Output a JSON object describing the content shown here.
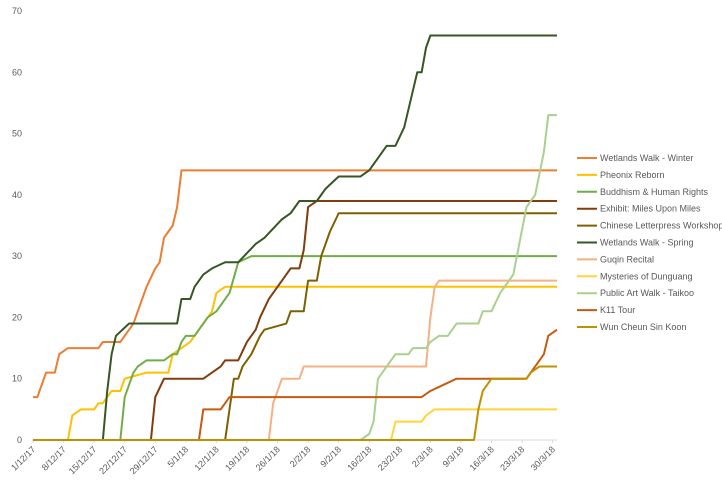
{
  "chart_data": {
    "type": "line",
    "xlim": [
      0,
      120
    ],
    "xticks": [
      {
        "value": 0,
        "label": "1/12/17"
      },
      {
        "value": 7,
        "label": "8/12/17"
      },
      {
        "value": 14,
        "label": "15/12/17"
      },
      {
        "value": 21,
        "label": "22/12/17"
      },
      {
        "value": 28,
        "label": "29/12/17"
      },
      {
        "value": 35,
        "label": "5/1/18"
      },
      {
        "value": 42,
        "label": "12/1/18"
      },
      {
        "value": 49,
        "label": "19/1/18"
      },
      {
        "value": 56,
        "label": "26/1/18"
      },
      {
        "value": 63,
        "label": "2/2/18"
      },
      {
        "value": 70,
        "label": "9/2/18"
      },
      {
        "value": 77,
        "label": "16/2/18"
      },
      {
        "value": 84,
        "label": "23/2/18"
      },
      {
        "value": 91,
        "label": "2/3/18"
      },
      {
        "value": 98,
        "label": "9/3/18"
      },
      {
        "value": 105,
        "label": "16/3/18"
      },
      {
        "value": 112,
        "label": "23/3/18"
      },
      {
        "value": 119,
        "label": "30/3/18"
      }
    ],
    "ylim": [
      0,
      70
    ],
    "yticks": [
      0,
      10,
      20,
      30,
      40,
      50,
      60,
      70
    ],
    "grid": false,
    "legend": "right",
    "series": [
      {
        "name": "Wetlands Walk - Winter",
        "color": "#ED7D31",
        "x": [
          0,
          1,
          3,
          5,
          6,
          8,
          15,
          16,
          20,
          23,
          26,
          28,
          29,
          30,
          32,
          33,
          34,
          120
        ],
        "values": [
          7,
          7,
          11,
          11,
          14,
          15,
          15,
          16,
          16,
          19,
          25,
          28,
          29,
          33,
          35,
          38,
          44,
          44
        ]
      },
      {
        "name": "Pheonix Reborn",
        "color": "#FFC000",
        "x": [
          0,
          8,
          9,
          11,
          14,
          15,
          16,
          18,
          20,
          21,
          26,
          31,
          32,
          36,
          37,
          39,
          41,
          42,
          44,
          120
        ],
        "values": [
          0,
          0,
          4,
          5,
          5,
          6,
          6,
          8,
          8,
          10,
          11,
          11,
          14,
          16,
          17,
          19,
          21,
          24,
          25,
          25
        ]
      },
      {
        "name": "Buddhism & Human Rights",
        "color": "#70AD47",
        "x": [
          0,
          20,
          21,
          22,
          23,
          24,
          26,
          30,
          32,
          33,
          34,
          35,
          37,
          39,
          40,
          42,
          45,
          47,
          50,
          120
        ],
        "values": [
          0,
          0,
          7,
          9,
          11,
          12,
          13,
          13,
          14,
          14,
          16,
          17,
          17,
          19,
          20,
          21,
          24,
          29,
          30,
          30
        ]
      },
      {
        "name": "Exhibit: Miles Upon Miles",
        "color": "#843C0C",
        "x": [
          0,
          27,
          28,
          30,
          39,
          41,
          43,
          44,
          47,
          49,
          51,
          52,
          54,
          57,
          59,
          61,
          62,
          63,
          65,
          120
        ],
        "values": [
          0,
          0,
          7,
          10,
          10,
          11,
          12,
          13,
          13,
          16,
          18,
          20,
          23,
          26,
          28,
          28,
          31,
          38,
          39,
          39
        ]
      },
      {
        "name": "Chinese Letterpress Workshop",
        "color": "#7F6000",
        "x": [
          0,
          44,
          45,
          46,
          47,
          48,
          50,
          52,
          53,
          58,
          59,
          62,
          63,
          65,
          66,
          68,
          70,
          120
        ],
        "values": [
          0,
          0,
          5,
          10,
          10,
          12,
          14,
          17,
          18,
          19,
          21,
          21,
          26,
          26,
          30,
          34,
          37,
          37
        ]
      },
      {
        "name": "Wetlands Walk - Spring",
        "color": "#375623",
        "x": [
          0,
          16,
          17,
          18,
          19,
          22,
          33,
          34,
          36,
          37,
          39,
          41,
          44,
          47,
          51,
          53,
          57,
          59,
          61,
          65,
          67,
          70,
          75,
          77,
          78,
          80,
          81,
          83,
          85,
          86,
          88,
          89,
          90,
          91,
          120
        ],
        "values": [
          0,
          0,
          8,
          14,
          17,
          19,
          19,
          23,
          23,
          25,
          27,
          28,
          29,
          29,
          32,
          33,
          36,
          37,
          39,
          39,
          41,
          43,
          43,
          44,
          45,
          47,
          48,
          48,
          51,
          54,
          60,
          60,
          64,
          66,
          66
        ]
      },
      {
        "name": "Guqin Recital",
        "color": "#F4B183",
        "x": [
          0,
          54,
          55,
          57,
          61,
          62,
          90,
          91,
          92,
          93,
          120
        ],
        "values": [
          0,
          0,
          6,
          10,
          10,
          12,
          12,
          20,
          25,
          26,
          26
        ]
      },
      {
        "name": "Mysteries of Dunguang",
        "color": "#FFD43B",
        "x": [
          0,
          82,
          83,
          89,
          90,
          92,
          120
        ],
        "values": [
          0,
          0,
          3,
          3,
          4,
          5,
          5
        ]
      },
      {
        "name": "Public Art Walk - Taikoo",
        "color": "#A9D18E",
        "x": [
          0,
          75,
          77,
          78,
          79,
          81,
          83,
          86,
          87,
          90,
          91,
          93,
          95,
          97,
          102,
          103,
          105,
          107,
          108,
          110,
          113,
          114,
          115,
          117,
          118,
          120
        ],
        "values": [
          0,
          0,
          1,
          3,
          10,
          12,
          14,
          14,
          15,
          15,
          16,
          17,
          17,
          19,
          19,
          21,
          21,
          24,
          25,
          27,
          38,
          39,
          40,
          47,
          53,
          53
        ]
      },
      {
        "name": "K11 Tour",
        "color": "#C55A11",
        "x": [
          0,
          38,
          39,
          43,
          44,
          45,
          89,
          91,
          94,
          97,
          113,
          115,
          117,
          118,
          120
        ],
        "values": [
          0,
          0,
          5,
          5,
          6,
          7,
          7,
          8,
          9,
          10,
          10,
          12,
          14,
          17,
          18
        ]
      },
      {
        "name": "Wun Cheun Sin Koon",
        "color": "#BF9000",
        "x": [
          0,
          101,
          102,
          103,
          105,
          113,
          114,
          116,
          120
        ],
        "values": [
          0,
          0,
          5,
          8,
          10,
          10,
          11,
          12,
          12
        ]
      }
    ]
  }
}
